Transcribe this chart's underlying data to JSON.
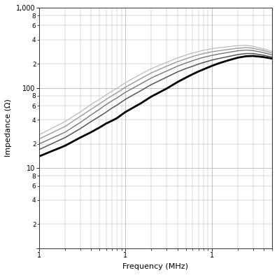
{
  "title": "",
  "xlabel": "Frequency (MHz)",
  "ylabel": "Impedance (Ω)",
  "xlim": [
    1,
    500
  ],
  "ylim": [
    1,
    1000
  ],
  "background_color": "#ffffff",
  "grid_color": "#aaaaaa",
  "curves": [
    {
      "color": "#000000",
      "linewidth": 2.0,
      "freq": [
        1,
        2,
        3,
        4,
        5,
        6,
        7,
        8,
        10,
        15,
        20,
        30,
        40,
        50,
        60,
        70,
        80,
        100,
        120,
        150,
        200,
        250,
        300,
        400,
        500
      ],
      "impedance": [
        14,
        19,
        24,
        28,
        32,
        36,
        39,
        42,
        50,
        64,
        78,
        98,
        118,
        134,
        148,
        160,
        170,
        188,
        202,
        218,
        238,
        248,
        250,
        242,
        232
      ]
    },
    {
      "color": "#555555",
      "linewidth": 1.1,
      "freq": [
        1,
        2,
        3,
        4,
        5,
        6,
        7,
        8,
        10,
        15,
        20,
        30,
        40,
        50,
        60,
        70,
        80,
        100,
        120,
        150,
        200,
        250,
        300,
        400,
        500
      ],
      "impedance": [
        17,
        24,
        31,
        38,
        44,
        50,
        56,
        61,
        72,
        92,
        110,
        136,
        158,
        174,
        186,
        198,
        207,
        222,
        232,
        244,
        260,
        268,
        268,
        255,
        242
      ]
    },
    {
      "color": "#777777",
      "linewidth": 1.0,
      "freq": [
        1,
        2,
        3,
        4,
        5,
        6,
        7,
        8,
        10,
        15,
        20,
        30,
        40,
        50,
        60,
        70,
        80,
        100,
        120,
        150,
        200,
        250,
        300,
        400,
        500
      ],
      "impedance": [
        20,
        28,
        37,
        46,
        54,
        62,
        69,
        75,
        88,
        112,
        133,
        162,
        186,
        204,
        218,
        230,
        240,
        254,
        264,
        275,
        290,
        296,
        292,
        275,
        258
      ]
    },
    {
      "color": "#999999",
      "linewidth": 1.0,
      "freq": [
        1,
        2,
        3,
        4,
        5,
        6,
        7,
        8,
        10,
        15,
        20,
        30,
        40,
        50,
        60,
        70,
        80,
        100,
        120,
        150,
        200,
        250,
        300,
        400,
        500
      ],
      "impedance": [
        23,
        33,
        44,
        54,
        63,
        72,
        80,
        87,
        102,
        130,
        154,
        186,
        212,
        230,
        246,
        258,
        268,
        282,
        290,
        300,
        312,
        318,
        312,
        292,
        272
      ]
    },
    {
      "color": "#bbbbbb",
      "linewidth": 0.9,
      "freq": [
        1,
        2,
        3,
        4,
        5,
        6,
        7,
        8,
        10,
        15,
        20,
        30,
        40,
        50,
        60,
        70,
        80,
        100,
        120,
        150,
        200,
        250,
        300,
        400,
        500
      ],
      "impedance": [
        26,
        38,
        50,
        62,
        72,
        82,
        91,
        99,
        116,
        148,
        174,
        208,
        236,
        256,
        272,
        284,
        294,
        308,
        316,
        325,
        336,
        340,
        330,
        306,
        284
      ]
    }
  ]
}
